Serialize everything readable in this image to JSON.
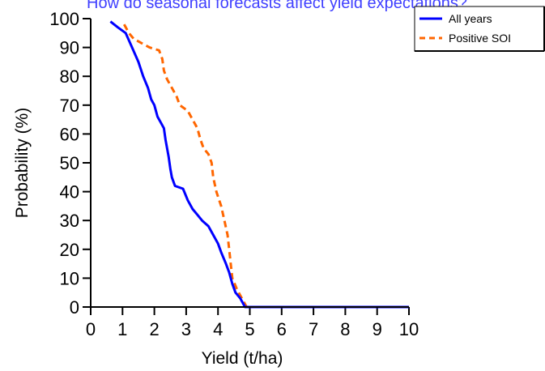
{
  "chart_data": {
    "type": "line",
    "title": "How do seasonal forecasts affect yield expectations?",
    "xlabel": "Yield (t/ha)",
    "ylabel": "Probability (%)",
    "xlim": [
      0,
      10
    ],
    "ylim": [
      0,
      100
    ],
    "x_ticks": [
      "0",
      "1",
      "2",
      "3",
      "4",
      "5",
      "6",
      "7",
      "8",
      "9",
      "10"
    ],
    "y_ticks": [
      "0",
      "10",
      "20",
      "30",
      "40",
      "50",
      "60",
      "70",
      "80",
      "90",
      "100"
    ],
    "legend_position": "top-right",
    "series": [
      {
        "name": "All years",
        "color": "#0000ff",
        "style": "solid",
        "points": [
          [
            0.62,
            99
          ],
          [
            0.85,
            97
          ],
          [
            1.1,
            95
          ],
          [
            1.3,
            90
          ],
          [
            1.5,
            85
          ],
          [
            1.65,
            80
          ],
          [
            1.8,
            76
          ],
          [
            1.9,
            72
          ],
          [
            2.0,
            70
          ],
          [
            2.1,
            66
          ],
          [
            2.2,
            64
          ],
          [
            2.3,
            62
          ],
          [
            2.35,
            58
          ],
          [
            2.45,
            52
          ],
          [
            2.5,
            48
          ],
          [
            2.55,
            45
          ],
          [
            2.65,
            42
          ],
          [
            2.9,
            41
          ],
          [
            3.05,
            37
          ],
          [
            3.2,
            34
          ],
          [
            3.35,
            32
          ],
          [
            3.5,
            30
          ],
          [
            3.7,
            28
          ],
          [
            3.85,
            25
          ],
          [
            4.0,
            22
          ],
          [
            4.1,
            19
          ],
          [
            4.25,
            15
          ],
          [
            4.35,
            12
          ],
          [
            4.45,
            8
          ],
          [
            4.55,
            5
          ],
          [
            4.7,
            3
          ],
          [
            4.8,
            1
          ],
          [
            4.85,
            0
          ],
          [
            10,
            0
          ]
        ]
      },
      {
        "name": "Positive SOI",
        "color": "#ff6600",
        "style": "dashed",
        "points": [
          [
            1.05,
            98
          ],
          [
            1.2,
            95
          ],
          [
            1.35,
            93
          ],
          [
            1.6,
            91.5
          ],
          [
            1.85,
            90
          ],
          [
            2.15,
            89
          ],
          [
            2.25,
            86
          ],
          [
            2.3,
            82
          ],
          [
            2.4,
            79
          ],
          [
            2.55,
            76
          ],
          [
            2.7,
            73
          ],
          [
            2.8,
            70
          ],
          [
            3.05,
            68
          ],
          [
            3.2,
            65
          ],
          [
            3.35,
            62
          ],
          [
            3.45,
            58
          ],
          [
            3.55,
            55
          ],
          [
            3.7,
            53
          ],
          [
            3.8,
            50
          ],
          [
            3.85,
            45
          ],
          [
            3.95,
            40
          ],
          [
            4.1,
            35
          ],
          [
            4.2,
            30
          ],
          [
            4.3,
            25
          ],
          [
            4.35,
            20
          ],
          [
            4.4,
            15
          ],
          [
            4.45,
            10
          ],
          [
            4.6,
            6
          ],
          [
            4.75,
            3
          ],
          [
            4.9,
            0
          ]
        ]
      }
    ]
  }
}
